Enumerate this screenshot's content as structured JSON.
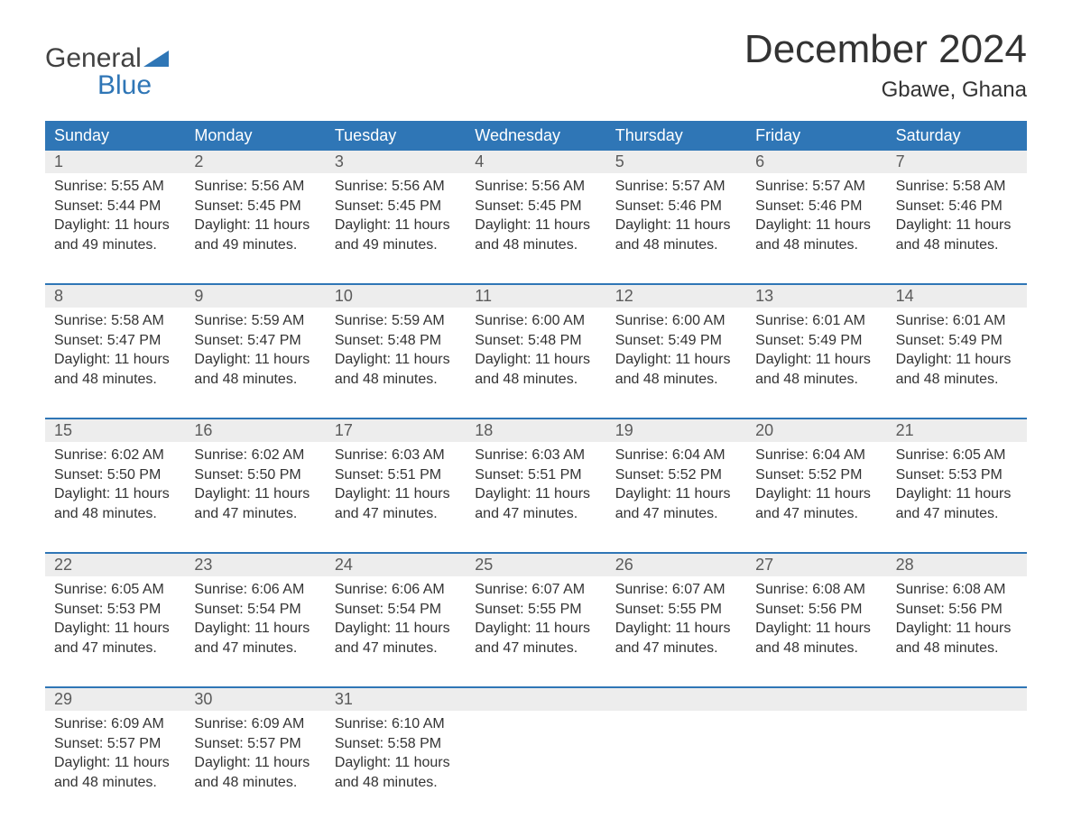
{
  "brand": {
    "word1": "General",
    "word2": "Blue"
  },
  "title": "December 2024",
  "subtitle": "Gbawe, Ghana",
  "colors": {
    "accent": "#2f76b6",
    "header_bg": "#2f76b6",
    "header_text": "#ffffff",
    "daynum_bg": "#ededed",
    "daynum_text": "#5b5b5b",
    "body_text": "#333333",
    "logo_gray": "#424242"
  },
  "day_names": [
    "Sunday",
    "Monday",
    "Tuesday",
    "Wednesday",
    "Thursday",
    "Friday",
    "Saturday"
  ],
  "weeks": [
    [
      {
        "n": "1",
        "sunrise": "5:55 AM",
        "sunset": "5:44 PM",
        "dl1": "Daylight: 11 hours",
        "dl2": "and 49 minutes."
      },
      {
        "n": "2",
        "sunrise": "5:56 AM",
        "sunset": "5:45 PM",
        "dl1": "Daylight: 11 hours",
        "dl2": "and 49 minutes."
      },
      {
        "n": "3",
        "sunrise": "5:56 AM",
        "sunset": "5:45 PM",
        "dl1": "Daylight: 11 hours",
        "dl2": "and 49 minutes."
      },
      {
        "n": "4",
        "sunrise": "5:56 AM",
        "sunset": "5:45 PM",
        "dl1": "Daylight: 11 hours",
        "dl2": "and 48 minutes."
      },
      {
        "n": "5",
        "sunrise": "5:57 AM",
        "sunset": "5:46 PM",
        "dl1": "Daylight: 11 hours",
        "dl2": "and 48 minutes."
      },
      {
        "n": "6",
        "sunrise": "5:57 AM",
        "sunset": "5:46 PM",
        "dl1": "Daylight: 11 hours",
        "dl2": "and 48 minutes."
      },
      {
        "n": "7",
        "sunrise": "5:58 AM",
        "sunset": "5:46 PM",
        "dl1": "Daylight: 11 hours",
        "dl2": "and 48 minutes."
      }
    ],
    [
      {
        "n": "8",
        "sunrise": "5:58 AM",
        "sunset": "5:47 PM",
        "dl1": "Daylight: 11 hours",
        "dl2": "and 48 minutes."
      },
      {
        "n": "9",
        "sunrise": "5:59 AM",
        "sunset": "5:47 PM",
        "dl1": "Daylight: 11 hours",
        "dl2": "and 48 minutes."
      },
      {
        "n": "10",
        "sunrise": "5:59 AM",
        "sunset": "5:48 PM",
        "dl1": "Daylight: 11 hours",
        "dl2": "and 48 minutes."
      },
      {
        "n": "11",
        "sunrise": "6:00 AM",
        "sunset": "5:48 PM",
        "dl1": "Daylight: 11 hours",
        "dl2": "and 48 minutes."
      },
      {
        "n": "12",
        "sunrise": "6:00 AM",
        "sunset": "5:49 PM",
        "dl1": "Daylight: 11 hours",
        "dl2": "and 48 minutes."
      },
      {
        "n": "13",
        "sunrise": "6:01 AM",
        "sunset": "5:49 PM",
        "dl1": "Daylight: 11 hours",
        "dl2": "and 48 minutes."
      },
      {
        "n": "14",
        "sunrise": "6:01 AM",
        "sunset": "5:49 PM",
        "dl1": "Daylight: 11 hours",
        "dl2": "and 48 minutes."
      }
    ],
    [
      {
        "n": "15",
        "sunrise": "6:02 AM",
        "sunset": "5:50 PM",
        "dl1": "Daylight: 11 hours",
        "dl2": "and 48 minutes."
      },
      {
        "n": "16",
        "sunrise": "6:02 AM",
        "sunset": "5:50 PM",
        "dl1": "Daylight: 11 hours",
        "dl2": "and 47 minutes."
      },
      {
        "n": "17",
        "sunrise": "6:03 AM",
        "sunset": "5:51 PM",
        "dl1": "Daylight: 11 hours",
        "dl2": "and 47 minutes."
      },
      {
        "n": "18",
        "sunrise": "6:03 AM",
        "sunset": "5:51 PM",
        "dl1": "Daylight: 11 hours",
        "dl2": "and 47 minutes."
      },
      {
        "n": "19",
        "sunrise": "6:04 AM",
        "sunset": "5:52 PM",
        "dl1": "Daylight: 11 hours",
        "dl2": "and 47 minutes."
      },
      {
        "n": "20",
        "sunrise": "6:04 AM",
        "sunset": "5:52 PM",
        "dl1": "Daylight: 11 hours",
        "dl2": "and 47 minutes."
      },
      {
        "n": "21",
        "sunrise": "6:05 AM",
        "sunset": "5:53 PM",
        "dl1": "Daylight: 11 hours",
        "dl2": "and 47 minutes."
      }
    ],
    [
      {
        "n": "22",
        "sunrise": "6:05 AM",
        "sunset": "5:53 PM",
        "dl1": "Daylight: 11 hours",
        "dl2": "and 47 minutes."
      },
      {
        "n": "23",
        "sunrise": "6:06 AM",
        "sunset": "5:54 PM",
        "dl1": "Daylight: 11 hours",
        "dl2": "and 47 minutes."
      },
      {
        "n": "24",
        "sunrise": "6:06 AM",
        "sunset": "5:54 PM",
        "dl1": "Daylight: 11 hours",
        "dl2": "and 47 minutes."
      },
      {
        "n": "25",
        "sunrise": "6:07 AM",
        "sunset": "5:55 PM",
        "dl1": "Daylight: 11 hours",
        "dl2": "and 47 minutes."
      },
      {
        "n": "26",
        "sunrise": "6:07 AM",
        "sunset": "5:55 PM",
        "dl1": "Daylight: 11 hours",
        "dl2": "and 47 minutes."
      },
      {
        "n": "27",
        "sunrise": "6:08 AM",
        "sunset": "5:56 PM",
        "dl1": "Daylight: 11 hours",
        "dl2": "and 48 minutes."
      },
      {
        "n": "28",
        "sunrise": "6:08 AM",
        "sunset": "5:56 PM",
        "dl1": "Daylight: 11 hours",
        "dl2": "and 48 minutes."
      }
    ],
    [
      {
        "n": "29",
        "sunrise": "6:09 AM",
        "sunset": "5:57 PM",
        "dl1": "Daylight: 11 hours",
        "dl2": "and 48 minutes."
      },
      {
        "n": "30",
        "sunrise": "6:09 AM",
        "sunset": "5:57 PM",
        "dl1": "Daylight: 11 hours",
        "dl2": "and 48 minutes."
      },
      {
        "n": "31",
        "sunrise": "6:10 AM",
        "sunset": "5:58 PM",
        "dl1": "Daylight: 11 hours",
        "dl2": "and 48 minutes."
      },
      null,
      null,
      null,
      null
    ]
  ],
  "labels": {
    "sunrise": "Sunrise: ",
    "sunset": "Sunset: "
  }
}
